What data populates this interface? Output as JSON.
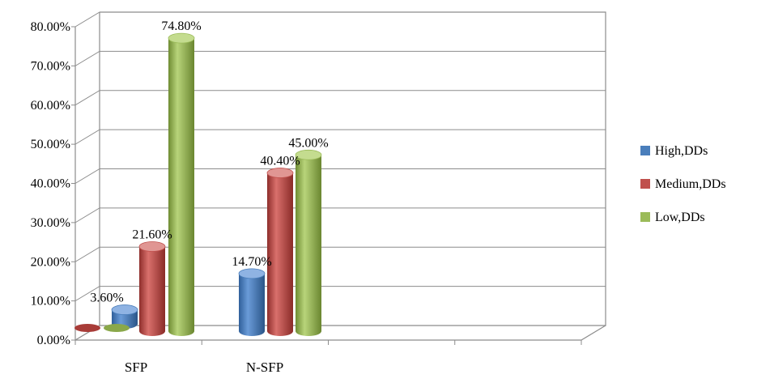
{
  "chart_data": {
    "type": "bar",
    "title": "",
    "xlabel": "",
    "ylabel": "",
    "categories": [
      "SFP",
      "N-SFP"
    ],
    "series": [
      {
        "name": "High,DDs",
        "values": [
          3.6,
          14.7
        ],
        "color": "#4a7ebb"
      },
      {
        "name": "Medium,DDs",
        "values": [
          21.6,
          40.4
        ],
        "color": "#c0504d"
      },
      {
        "name": "Low,DDs",
        "values": [
          74.8,
          45.0
        ],
        "color": "#9bbb59"
      }
    ],
    "data_labels": [
      [
        "3.60%",
        "14.70%"
      ],
      [
        "21.60%",
        "40.40%"
      ],
      [
        "74.80%",
        "45.00%"
      ]
    ],
    "y_ticks": [
      "0.00%",
      "10.00%",
      "20.00%",
      "30.00%",
      "40.00%",
      "50.00%",
      "60.00%",
      "70.00%",
      "80.00%"
    ],
    "ylim": [
      0,
      80
    ],
    "grid": true,
    "legend_position": "right",
    "style": "3d-cylinder"
  }
}
